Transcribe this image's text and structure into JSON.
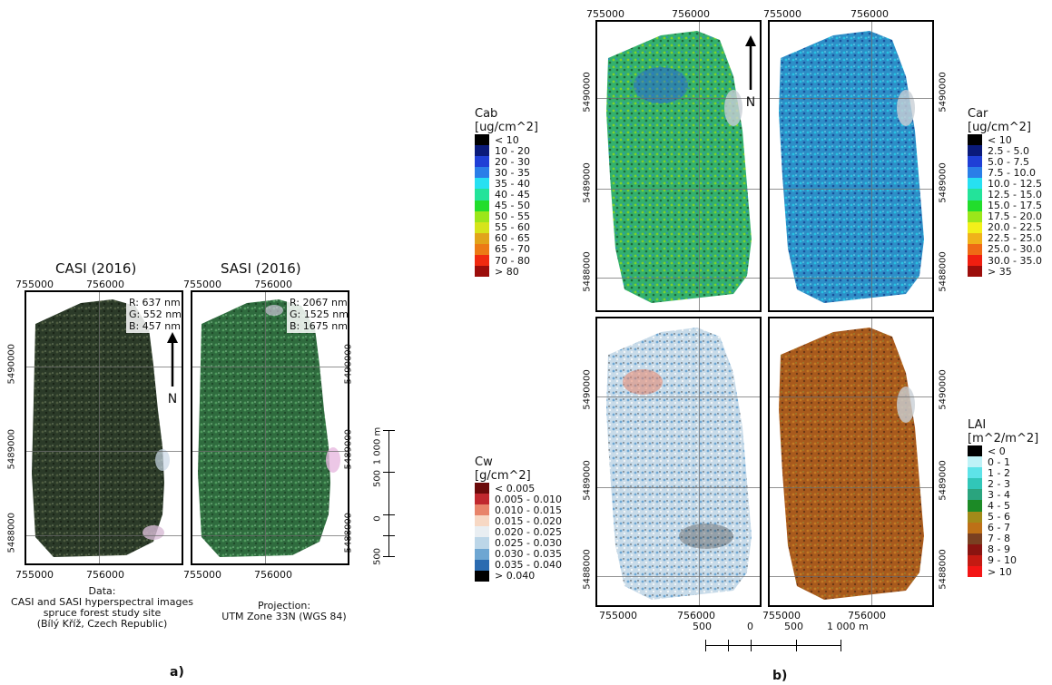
{
  "part_a": {
    "label": "a)",
    "titles": [
      "CASI (2016)",
      "SASI (2016)"
    ],
    "x_ticks": [
      "755000",
      "756000",
      "755000",
      "756000"
    ],
    "y_ticks": [
      "5490000",
      "5489000",
      "5488000"
    ],
    "casi_bands": {
      "r": "R: 637 nm",
      "g": "G: 552 nm",
      "b": "B: 457 nm"
    },
    "sasi_bands": {
      "r": "R: 2067 nm",
      "g": "G: 1525 nm",
      "b": "B: 1675 nm"
    },
    "north": "N",
    "scale_labels": [
      "1 000 m",
      "500",
      "0",
      "500"
    ],
    "data_text": [
      "Data:",
      "CASI and SASI hyperspectral images",
      "spruce forest study site",
      "(Bílý Kříž, Czech Republic)"
    ],
    "proj_text": [
      "Projection:",
      "UTM Zone 33N (WGS 84)"
    ]
  },
  "part_b": {
    "label": "b)",
    "x_ticks": [
      "755000",
      "756000",
      "755000",
      "756000"
    ],
    "y_ticks": [
      "5490000",
      "5489000",
      "5488000"
    ],
    "north": "N",
    "scale_labels": [
      "500",
      "0",
      "500",
      "1 000 m"
    ],
    "legends": {
      "cab": {
        "title": [
          "Cab",
          "[ug/cm^2]"
        ],
        "items": [
          "< 10",
          "10 - 20",
          "20 - 30",
          "30 - 35",
          "35 - 40",
          "40 - 45",
          "45 - 50",
          "50 - 55",
          "55 - 60",
          "60 - 65",
          "65 - 70",
          "70 - 80",
          "> 80"
        ],
        "colors": [
          "#000000",
          "#0a1a7a",
          "#1f3fd6",
          "#2a7ee8",
          "#27e0f2",
          "#23e39a",
          "#22dd2c",
          "#9be61a",
          "#d6e41a",
          "#e1a41a",
          "#ec7a15",
          "#f02a10",
          "#9c0d0b"
        ]
      },
      "car": {
        "title": [
          "Car",
          "[ug/cm^2]"
        ],
        "items": [
          "< 10",
          "2.5 - 5.0",
          "5.0 - 7.5",
          "7.5 - 10.0",
          "10.0 - 12.5",
          "12.5 - 15.0",
          "15.0 - 17.5",
          "17.5 - 20.0",
          "20.0 - 22.5",
          "22.5 - 25.0",
          "25.0 - 30.0",
          "30.0 - 35.0",
          "> 35"
        ],
        "colors": [
          "#000000",
          "#0a1a7a",
          "#1f3fd6",
          "#2a7ee8",
          "#27e0f2",
          "#23e39a",
          "#22dd2c",
          "#9be61a",
          "#f2f01a",
          "#f0b21a",
          "#ef6a15",
          "#f01e10",
          "#9c0d0b"
        ]
      },
      "cw": {
        "title": [
          "Cw",
          "[g/cm^2]"
        ],
        "items": [
          "< 0.005",
          "0.005 - 0.010",
          "0.010 - 0.015",
          "0.015 - 0.020",
          "0.020 - 0.025",
          "0.025 - 0.030",
          "0.030 - 0.035",
          "0.035 - 0.040",
          "> 0.040"
        ],
        "colors": [
          "#6b0a0a",
          "#c0282e",
          "#e8846a",
          "#f7d8c4",
          "#e9eef2",
          "#bcd6e8",
          "#6ea6d2",
          "#2a6bb0",
          "#000000"
        ]
      },
      "lai": {
        "title": [
          "LAI",
          "[m^2/m^2]"
        ],
        "items": [
          "< 0",
          "0 - 1",
          "1 - 2",
          "2 - 3",
          "3 - 4",
          "4 - 5",
          "5 - 6",
          "6 - 7",
          "7 - 8",
          "8 - 9",
          "9 - 10",
          "> 10"
        ],
        "colors": [
          "#000000",
          "#bff2f7",
          "#5ee3e8",
          "#31c6b8",
          "#2aa47e",
          "#1c8a26",
          "#a28a19",
          "#bd7017",
          "#7a4021",
          "#8a1410",
          "#c41a12",
          "#f31515"
        ]
      }
    }
  },
  "colors": {
    "casi_base": "#2d3f2a",
    "sasi_base": "#2f6b3e",
    "cab_base": "#2aa06a",
    "car_base": "#2d8ec7",
    "cw_base": "#c8dbe9",
    "lai_base": "#a85a1d"
  }
}
